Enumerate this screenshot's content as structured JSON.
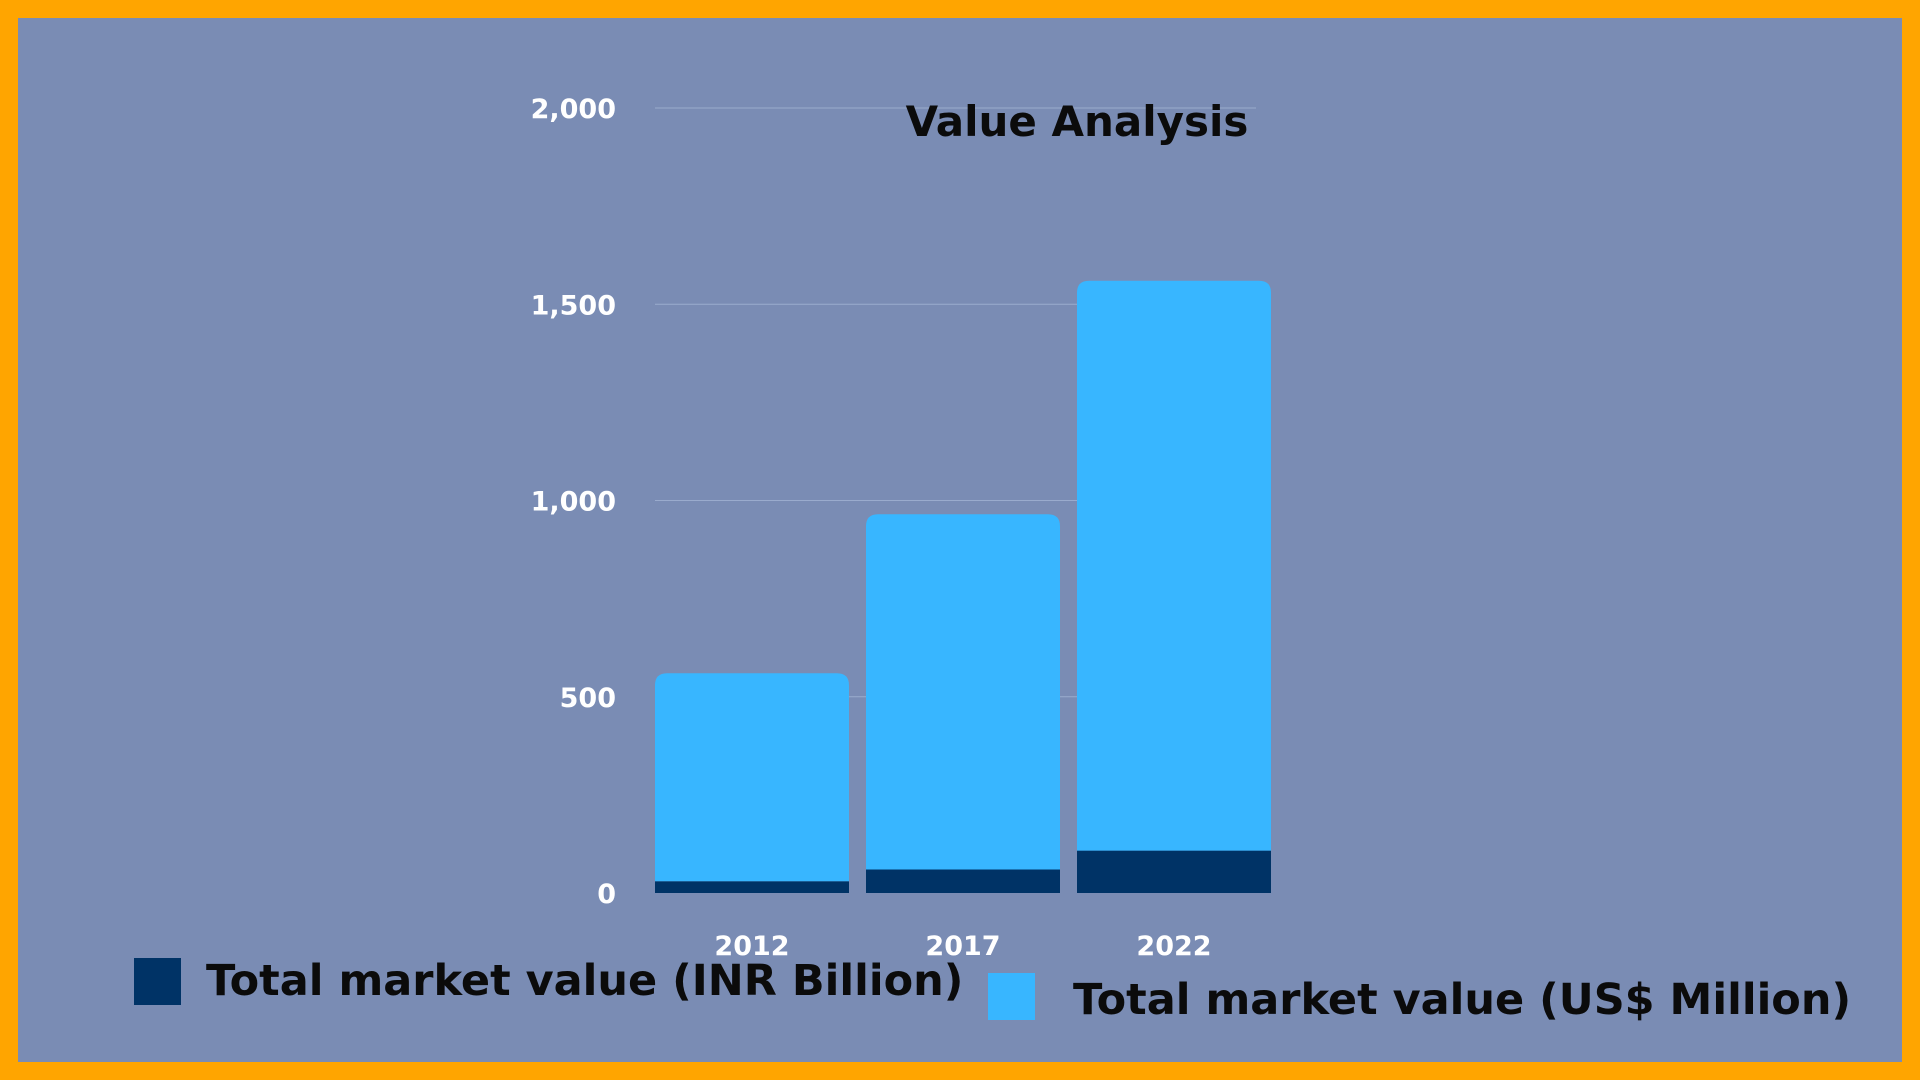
{
  "colors": {
    "frame": "#FFA500",
    "background": "#7A8CB4",
    "grid": "#9AABCD",
    "series_inr": "#003366",
    "series_usd": "#38B6FF",
    "tick_text": "#FFFFFF",
    "title_text": "#0B0B0B"
  },
  "chart_data": {
    "type": "bar",
    "stacked": true,
    "title": "Value Analysis",
    "xlabel": "",
    "ylabel": "",
    "categories": [
      "2012",
      "2017",
      "2022"
    ],
    "ylim": [
      0,
      2000
    ],
    "yticks": [
      0,
      500,
      1000,
      1500,
      2000
    ],
    "ytick_labels": [
      "0",
      "500",
      "1,000",
      "1,500",
      "2,000"
    ],
    "grid": true,
    "legend_position": "bottom",
    "series": [
      {
        "name": "Total market value (INR Billion)",
        "color": "#003366",
        "values": [
          30,
          60,
          108
        ]
      },
      {
        "name": "Total market value (US$ Million)",
        "color": "#38B6FF",
        "values": [
          530,
          905,
          1452
        ]
      }
    ]
  }
}
